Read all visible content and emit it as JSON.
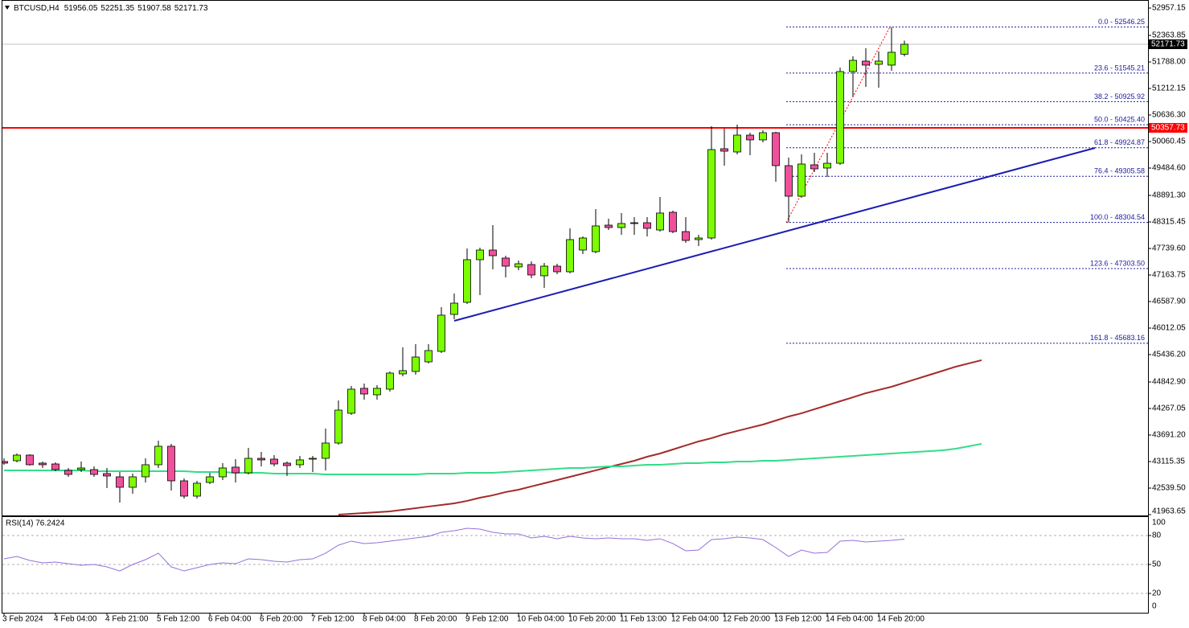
{
  "chart_data": {
    "type": "candlestick",
    "symbol": "BTCUSD,H4",
    "categories": [
      "3 Feb 2024",
      null,
      null,
      null,
      "4 Feb 04:00",
      null,
      null,
      null,
      "4 Feb 21:00",
      null,
      null,
      null,
      "5 Feb 12:00",
      null,
      null,
      null,
      "6 Feb 04:00",
      null,
      null,
      null,
      "6 Feb 20:00",
      null,
      null,
      null,
      "7 Feb 12:00",
      null,
      null,
      null,
      "8 Feb 04:00",
      null,
      null,
      null,
      "8 Feb 20:00",
      null,
      null,
      null,
      "9 Feb 12:00",
      null,
      null,
      null,
      "10 Feb 04:00",
      null,
      null,
      null,
      "10 Feb 20:00",
      null,
      null,
      null,
      "11 Feb 13:00",
      null,
      null,
      null,
      "12 Feb 04:00",
      null,
      null,
      null,
      "12 Feb 20:00",
      null,
      null,
      null,
      "13 Feb 12:00",
      null,
      null,
      null,
      "14 Feb 04:00",
      null,
      null,
      null,
      "14 Feb 20:00",
      null,
      null,
      null,
      null,
      null,
      null,
      null,
      null
    ],
    "open": [
      43116,
      43133,
      43255,
      43081,
      43063,
      42924,
      42941,
      42941,
      42854,
      42784,
      42557,
      42784,
      43046,
      43447,
      42697,
      42365,
      42662,
      42784,
      42994,
      42871,
      43185,
      43168,
      43081,
      43046,
      43168,
      43185,
      43517,
      44163,
      44704,
      44564,
      44686,
      45018,
      45070,
      45279,
      45506,
      46309,
      46571,
      47496,
      47705,
      47531,
      47339,
      47391,
      47147,
      47356,
      47234,
      47705,
      47670,
      48246,
      48194,
      48298,
      48298,
      48141,
      48525,
      48106,
      47932,
      47967,
      49904,
      49834,
      50200,
      50096,
      50253,
      49537,
      48874,
      49555,
      49485,
      49589,
      51579,
      51806,
      51736,
      51719,
      51956.05,
      null,
      null,
      null,
      null,
      null,
      null
    ],
    "high": [
      43185,
      43290,
      43273,
      43116,
      43098,
      42976,
      43116,
      43011,
      42976,
      42889,
      42854,
      43185,
      43569,
      43500,
      42749,
      42697,
      42871,
      43081,
      43168,
      43412,
      43325,
      43255,
      43116,
      43238,
      43238,
      43831,
      44442,
      44756,
      44808,
      44773,
      45070,
      45594,
      45663,
      45663,
      46466,
      46763,
      47740,
      47757,
      48246,
      47583,
      47478,
      47461,
      47426,
      47408,
      48176,
      48002,
      48595,
      48386,
      48508,
      48420,
      48420,
      48857,
      48560,
      48420,
      48037,
      50392,
      50340,
      50427,
      50253,
      50305,
      50270,
      49712,
      49782,
      49816,
      49816,
      51666,
      51910,
      52085,
      52015,
      52546.25,
      52251.35,
      null,
      null,
      null,
      null,
      null,
      null
    ],
    "low": [
      43046,
      43098,
      43028,
      42976,
      42906,
      42784,
      42889,
      42784,
      42540,
      42226,
      42418,
      42662,
      42976,
      42487,
      42313,
      42313,
      42627,
      42714,
      42662,
      42836,
      43011,
      43011,
      42802,
      42976,
      42889,
      42924,
      43482,
      44128,
      44459,
      44459,
      44634,
      44965,
      45000,
      45245,
      45471,
      46204,
      46536,
      46728,
      47286,
      47112,
      47269,
      47094,
      46885,
      47182,
      47199,
      47618,
      47635,
      48141,
      48037,
      48037,
      48002,
      48106,
      48072,
      47862,
      47792,
      47932,
      49537,
      49782,
      49764,
      50043,
      49188,
      48304.54,
      48839,
      49397,
      49293,
      49555,
      51038,
      51247,
      51230,
      51596,
      51907.58,
      null,
      null,
      null,
      null,
      null,
      null
    ],
    "close": [
      43081,
      43255,
      43046,
      43046,
      42941,
      42836,
      42976,
      42836,
      42802,
      42557,
      42784,
      43046,
      43447,
      42697,
      42365,
      42645,
      42784,
      42976,
      42871,
      43185,
      43151,
      43063,
      43028,
      43151,
      43185,
      43517,
      44232,
      44686,
      44581,
      44704,
      45035,
      45088,
      45384,
      45524,
      46292,
      46553,
      47496,
      47705,
      47583,
      47356,
      47408,
      47164,
      47356,
      47234,
      47932,
      47967,
      48229,
      48194,
      48281,
      48281,
      48176,
      48508,
      48106,
      47914,
      47967,
      49886,
      49851,
      50200,
      50096,
      50253,
      49537,
      48874,
      49572,
      49467,
      49589,
      51579,
      51823,
      51719,
      51806,
      51998,
      52171.73,
      null,
      null,
      null,
      null,
      null,
      null
    ],
    "bull_color": "#7cfc00",
    "bear_color": "#f0509b",
    "ylim": [
      41946,
      53132
    ],
    "yticks": [
      52957.15,
      52363.85,
      {
        "value": 51788,
        "label": "51788.00"
      },
      51212.15,
      {
        "value": 50636.3,
        "label": "50636.30"
      },
      50060.45,
      {
        "value": 49484.6,
        "label": "49484.60"
      },
      {
        "value": 48891.3,
        "label": "48891.30"
      },
      48315.45,
      {
        "value": 47739.6,
        "label": "47739.60"
      },
      47163.75,
      {
        "value": 46587.9,
        "label": "46587.90"
      },
      46012.05,
      {
        "value": 45436.2,
        "label": "45436.20"
      },
      {
        "value": 44842.9,
        "label": "44842.90"
      },
      44267.05,
      {
        "value": 43691.2,
        "label": "43691.20"
      },
      43115.35,
      {
        "value": 42539.5,
        "label": "42539.50"
      },
      41963.65
    ],
    "ma_lines": [
      {
        "color": "#a52a2a",
        "values": [
          null,
          null,
          null,
          null,
          null,
          null,
          null,
          null,
          null,
          null,
          null,
          null,
          null,
          null,
          null,
          null,
          null,
          null,
          null,
          null,
          null,
          null,
          null,
          null,
          null,
          null,
          41964,
          41982,
          41999,
          42016,
          42034,
          42069,
          42104,
          42139,
          42173,
          42208,
          42261,
          42330,
          42383,
          42453,
          42505,
          42575,
          42644,
          42714,
          42784,
          42854,
          42924,
          42994,
          43063,
          43133,
          43220,
          43290,
          43377,
          43465,
          43552,
          43622,
          43709,
          43779,
          43849,
          43918,
          44005,
          44093,
          44163,
          44250,
          44337,
          44424,
          44511,
          44599,
          44669,
          44738,
          44826,
          44913,
          45000,
          45087,
          45175,
          45245,
          45315
        ]
      },
      {
        "color": "#33dd88",
        "values": [
          42924,
          42924,
          42924,
          42924,
          42924,
          42924,
          42924,
          42906,
          42906,
          42906,
          42906,
          42906,
          42906,
          42906,
          42906,
          42889,
          42889,
          42889,
          42871,
          42871,
          42871,
          42854,
          42854,
          42854,
          42854,
          42836,
          42836,
          42836,
          42836,
          42836,
          42836,
          42836,
          42836,
          42854,
          42854,
          42854,
          42871,
          42871,
          42871,
          42889,
          42906,
          42924,
          42941,
          42959,
          42976,
          42976,
          42994,
          43011,
          43011,
          43028,
          43046,
          43046,
          43063,
          43081,
          43081,
          43098,
          43098,
          43116,
          43116,
          43133,
          43133,
          43151,
          43168,
          43185,
          43203,
          43220,
          43238,
          43255,
          43273,
          43290,
          43307,
          43325,
          43342,
          43360,
          43395,
          43447,
          43500
        ]
      }
    ],
    "hline": {
      "value": 50357.73,
      "color": "#ff0000"
    },
    "trendline": {
      "values": [
        46169,
        49921
      ],
      "color": "#1c1cb4"
    },
    "fib": {
      "color": "#1c1c9c",
      "levels": [
        {
          "value": 52546.25,
          "label": "0.0 - 52546.25"
        },
        {
          "value": 51545.21,
          "label": "23.6 - 51545.21"
        },
        {
          "value": 50925.92,
          "label": "38.2 - 50925.92"
        },
        {
          "value": 50425.4,
          "label": "50.0 - 50425.40"
        },
        {
          "value": 49924.87,
          "label": "61.8 - 49924.87"
        },
        {
          "value": 49305.58,
          "label": "76.4 - 49305.58"
        },
        {
          "value": 48304.54,
          "label": "100.0 - 48304.54"
        },
        {
          "value": 47303.5,
          "label": "123.6 - 47303.50"
        },
        {
          "value": 45683.16,
          "label": "161.8 - 45683.16"
        }
      ]
    },
    "rsi": {
      "label": "RSI(14) 76.2424",
      "color": "#9370db",
      "ylim": [
        0,
        100
      ],
      "yticks": [
        100,
        80,
        50,
        20,
        0
      ],
      "values": [
        55.8,
        58.3,
        54.2,
        51.7,
        52.5,
        50.8,
        49.2,
        50.0,
        47.5,
        43.3,
        50.0,
        55.0,
        61.7,
        47.5,
        43.3,
        46.7,
        50.0,
        51.7,
        50.8,
        55.8,
        55.0,
        53.3,
        52.5,
        55.0,
        55.8,
        61.7,
        70.0,
        74.2,
        71.7,
        72.5,
        74.2,
        75.8,
        77.5,
        79.2,
        83.3,
        85.0,
        87.5,
        86.7,
        83.3,
        81.7,
        81.7,
        77.5,
        79.2,
        76.7,
        79.2,
        77.5,
        76.7,
        77.5,
        76.7,
        76.7,
        75.0,
        76.7,
        71.7,
        64.2,
        65.0,
        75.8,
        76.7,
        78.3,
        77.5,
        75.8,
        67.5,
        58.3,
        65.0,
        61.7,
        62.5,
        74.2,
        75.0,
        73.3,
        74.2,
        75.0,
        76.2424,
        null,
        null,
        null,
        null,
        null,
        null
      ]
    }
  }
}
